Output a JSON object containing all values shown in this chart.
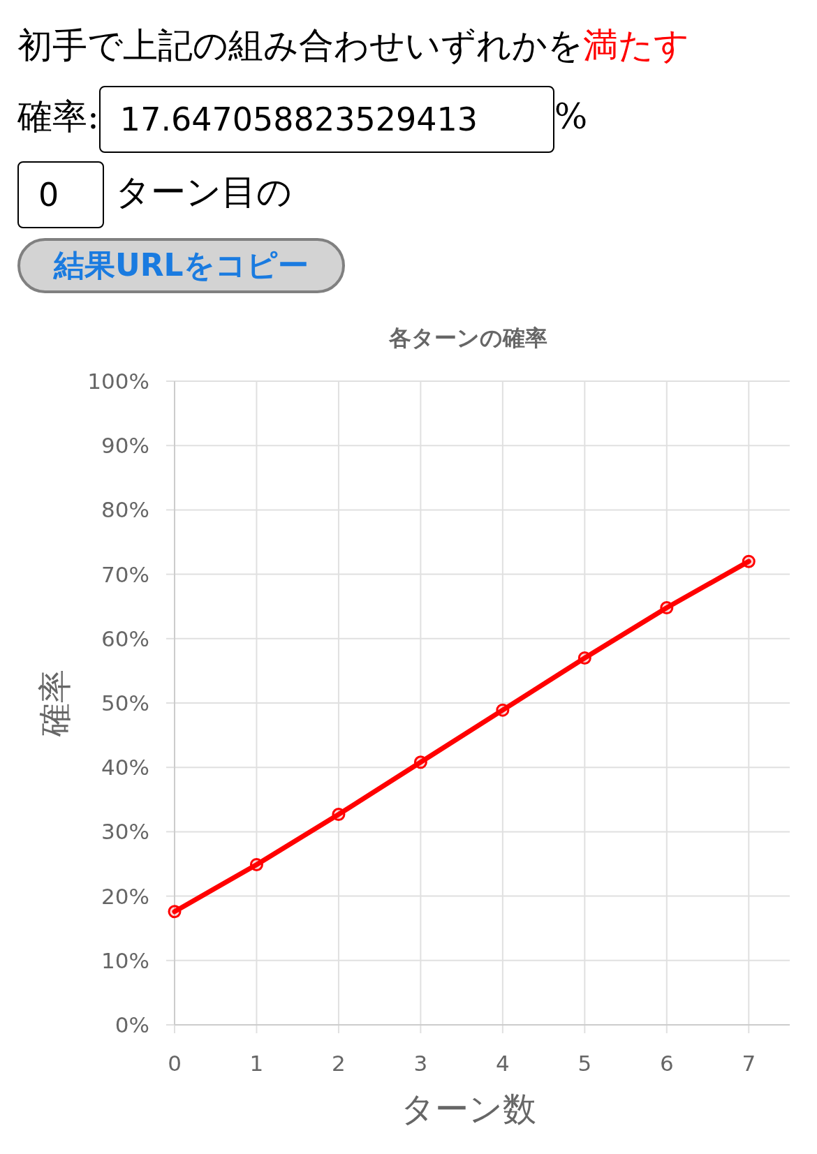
{
  "chart_data": {
    "type": "line",
    "title": "各ターンの確率",
    "xlabel": "ターン数",
    "ylabel": "確率",
    "annotations": [
      "初手で上記の組み合わせいずれかを",
      "満たす",
      "確率:",
      "17.647058823529413",
      "%",
      "0",
      "ターン目の",
      "結果URLをコピー"
    ],
    "x": [
      0,
      1,
      2,
      3,
      4,
      5,
      6,
      7
    ],
    "series": [
      {
        "color": "#ff0000",
        "values": [
          17.6,
          24.9,
          32.7,
          40.8,
          48.9,
          57.0,
          64.8,
          72.0
        ]
      }
    ],
    "xlim": [
      0,
      7.5
    ],
    "ylim": [
      0,
      100
    ],
    "xticks": [
      0,
      1,
      2,
      3,
      4,
      5,
      6,
      7
    ],
    "yticks": [
      {
        "value": 0,
        "label": "0%"
      },
      {
        "value": 10,
        "label": "10%"
      },
      {
        "value": 20,
        "label": "20%"
      },
      {
        "value": 30,
        "label": "30%"
      },
      {
        "value": 40,
        "label": "40%"
      },
      {
        "value": 50,
        "label": "50%"
      },
      {
        "value": 60,
        "label": "60%"
      },
      {
        "value": 70,
        "label": "70%"
      },
      {
        "value": 80,
        "label": "80%"
      },
      {
        "value": 90,
        "label": "90%"
      },
      {
        "value": 100,
        "label": "100%"
      }
    ],
    "grid": true,
    "marker": "circle",
    "line_style": "solid"
  }
}
